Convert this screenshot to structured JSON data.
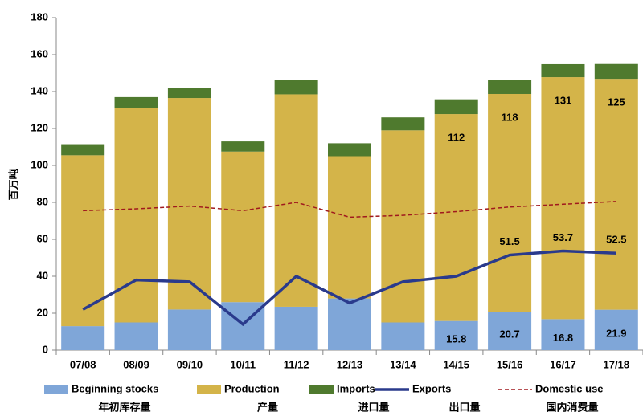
{
  "chart_data": {
    "type": "bar",
    "y_axis_label": "百万吨",
    "categories": [
      "07/08",
      "08/09",
      "09/10",
      "10/11",
      "11/12",
      "12/13",
      "13/14",
      "14/15",
      "15/16",
      "16/17",
      "17/18"
    ],
    "ylim": [
      0,
      180
    ],
    "yticks": [
      0,
      20,
      40,
      60,
      80,
      100,
      120,
      140,
      160,
      180
    ],
    "series": [
      {
        "name": "Beginning stocks",
        "label_cn": "年初库存量",
        "type": "bar",
        "color": "#7fa6d8",
        "values": [
          13,
          15,
          22,
          26,
          23.5,
          28,
          15,
          15.8,
          20.7,
          16.8,
          21.9
        ],
        "value_labels": [
          null,
          null,
          null,
          null,
          null,
          null,
          null,
          "15.8",
          "20.7",
          "16.8",
          "21.9"
        ]
      },
      {
        "name": "Production",
        "label_cn": "产量",
        "type": "bar",
        "color": "#d4b449",
        "values": [
          92.5,
          116,
          114.5,
          81.5,
          115,
          77,
          104,
          112,
          118,
          131,
          125
        ],
        "value_labels": [
          null,
          null,
          null,
          null,
          null,
          null,
          null,
          "112",
          "118",
          "131",
          "125"
        ]
      },
      {
        "name": "Imports",
        "label_cn": "进口量",
        "type": "bar",
        "color": "#4f7a2e",
        "values": [
          6,
          6,
          5.5,
          5.5,
          8,
          7,
          7,
          8,
          7.5,
          7,
          8
        ]
      },
      {
        "name": "Exports",
        "label_cn": "出口量",
        "type": "line",
        "color": "#2a3a8c",
        "values": [
          22,
          38,
          37,
          14,
          40,
          25.5,
          37,
          40,
          51.5,
          53.7,
          52.5
        ],
        "value_labels": [
          null,
          null,
          null,
          null,
          null,
          null,
          null,
          null,
          "51.5",
          "53.7",
          "52.5"
        ]
      },
      {
        "name": "Domestic use",
        "label_cn": "国内消费量",
        "type": "line",
        "dashed": true,
        "color": "#a0191e",
        "values": [
          75.5,
          76.5,
          78,
          75.5,
          80,
          72,
          73,
          75,
          77.5,
          79,
          80.5
        ]
      }
    ]
  }
}
